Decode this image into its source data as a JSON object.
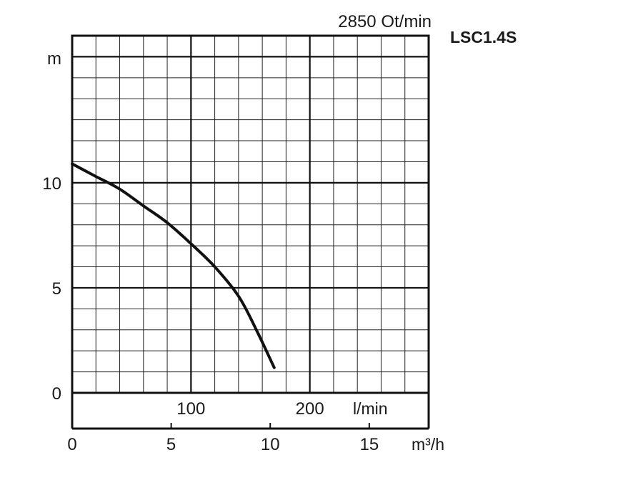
{
  "chart_data": {
    "type": "line",
    "speed_label": "2850 Ot/min",
    "model_label": "LSC1.4S",
    "y_unit": "m",
    "x_unit_flow_lmin": "l/min",
    "x_unit_flow_m3h": "m³/h",
    "ylim": [
      0,
      17
    ],
    "xlim_lmin": [
      0,
      300
    ],
    "xlim_m3h": [
      0,
      18
    ],
    "grid": true,
    "y_ticks": [
      {
        "value": 0,
        "label": "0"
      },
      {
        "value": 5,
        "label": "5"
      },
      {
        "value": 10,
        "label": "10"
      }
    ],
    "x_ticks_lmin": [
      {
        "value": 100,
        "label": "100"
      },
      {
        "value": 200,
        "label": "200"
      }
    ],
    "x_ticks_m3h": [
      {
        "value": 0,
        "label": "0"
      },
      {
        "value": 5,
        "label": "5"
      },
      {
        "value": 10,
        "label": "10"
      },
      {
        "value": 15,
        "label": "15"
      }
    ],
    "series": [
      {
        "x_lmin": [
          0,
          20,
          40,
          60,
          80,
          100,
          120,
          140,
          155,
          170
        ],
        "y_m": [
          10.9,
          10.3,
          9.7,
          8.9,
          8.1,
          7.1,
          6.0,
          4.6,
          3.0,
          1.2
        ]
      }
    ]
  }
}
